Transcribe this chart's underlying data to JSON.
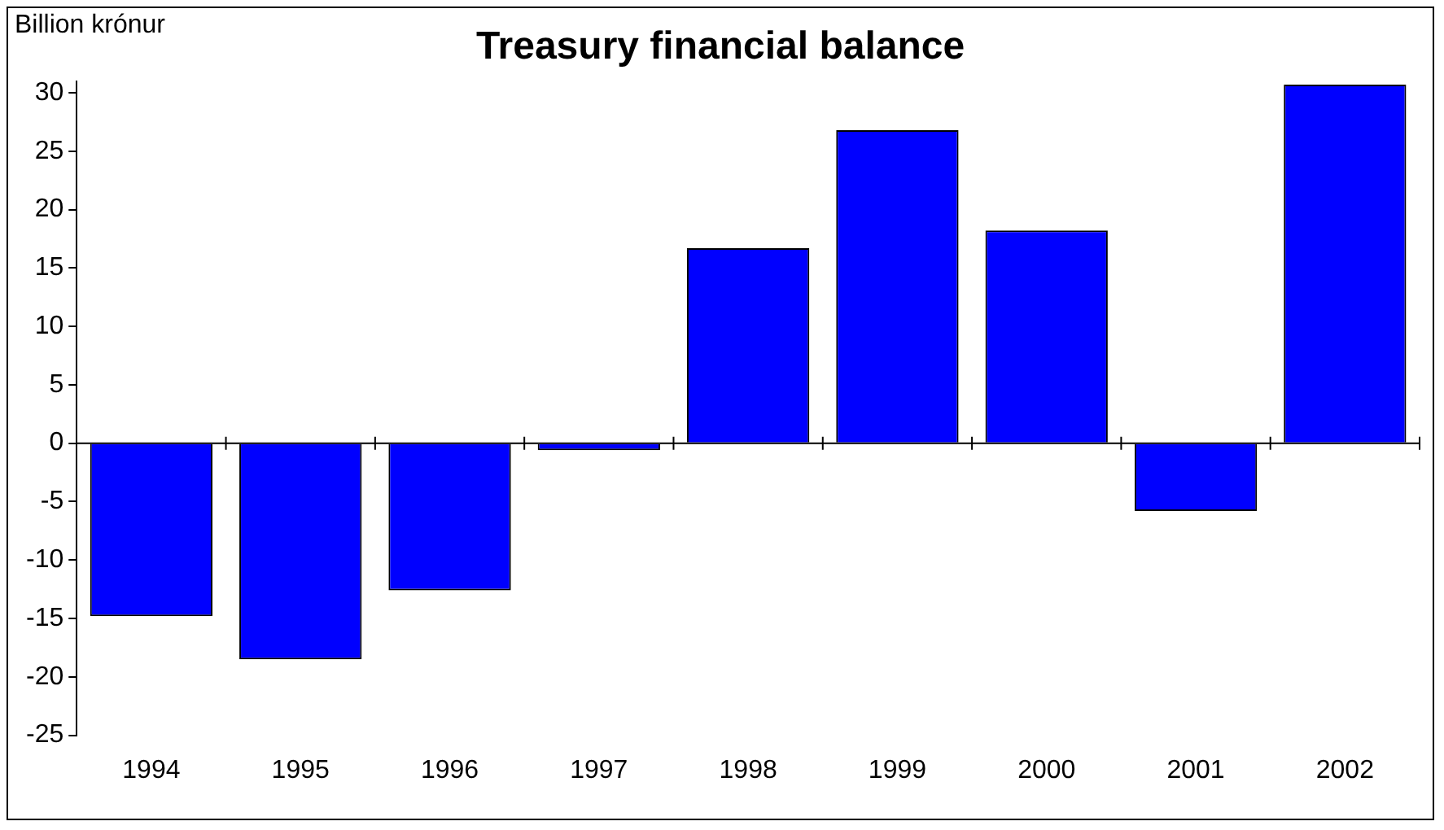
{
  "chart_data": {
    "type": "bar",
    "title": "Treasury financial balance",
    "ylabel": "Billion krónur",
    "categories": [
      "1994",
      "1995",
      "1996",
      "1997",
      "1998",
      "1999",
      "2000",
      "2001",
      "2002"
    ],
    "values": [
      -14.8,
      -18.5,
      -12.6,
      -0.6,
      16.7,
      26.8,
      18.2,
      -5.8,
      30.7
    ],
    "color": "#0000ff",
    "ylim": [
      -25,
      31
    ],
    "yticks": [
      -25,
      -20,
      -15,
      -10,
      -5,
      0,
      5,
      10,
      15,
      20,
      25,
      30
    ],
    "legend": false
  }
}
